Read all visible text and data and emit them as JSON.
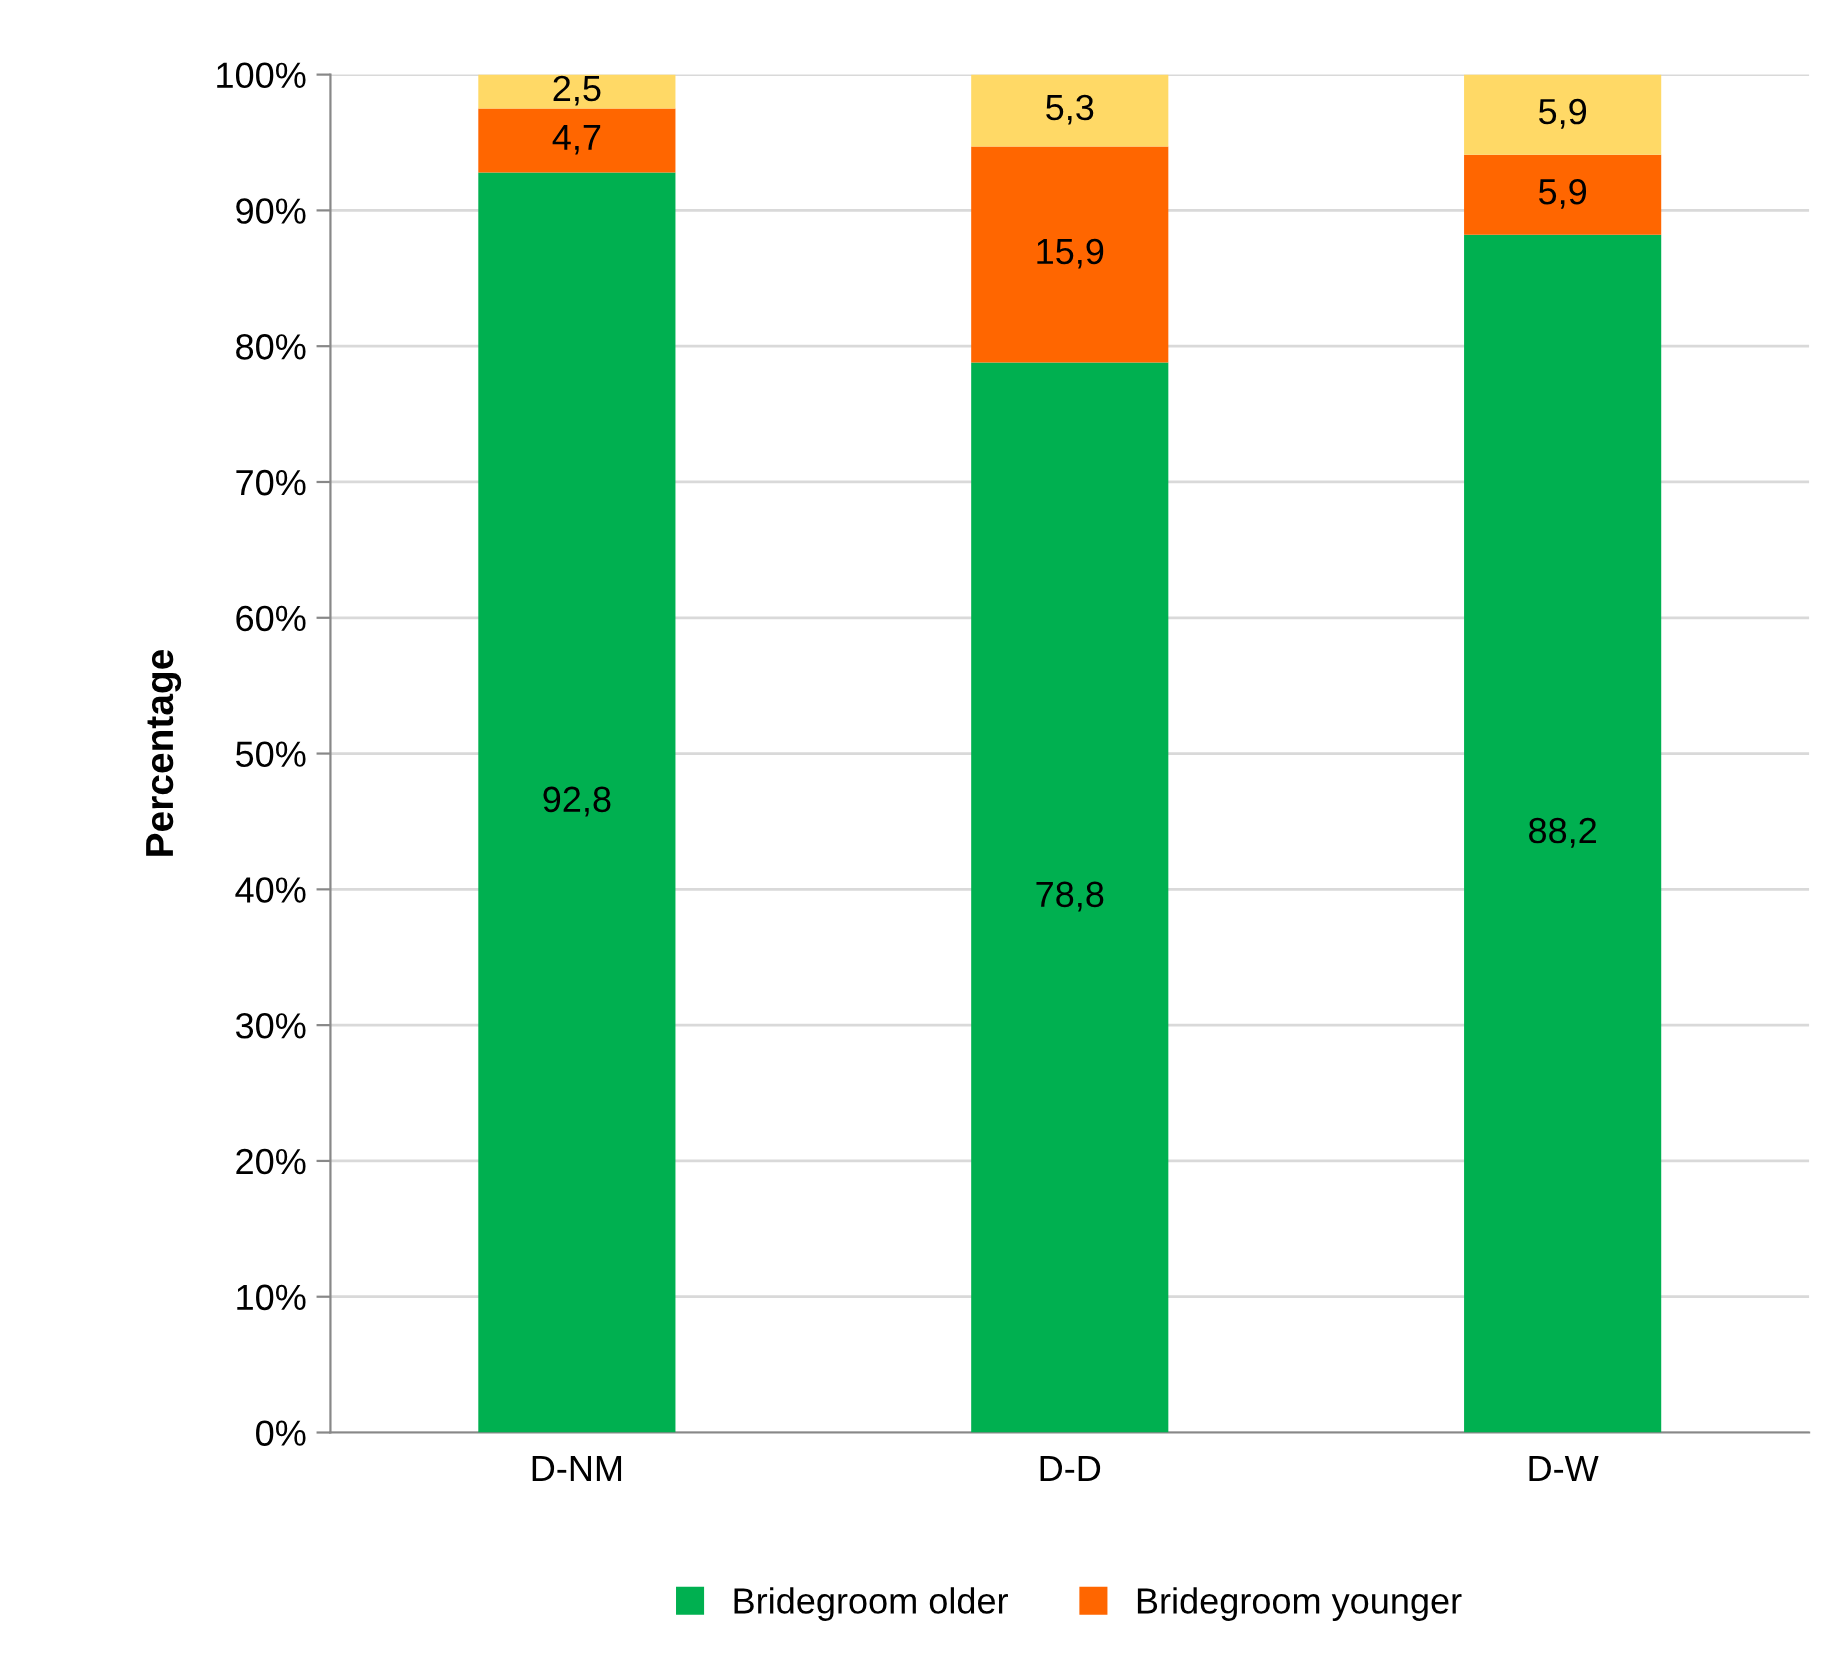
{
  "chart_data": {
    "type": "bar",
    "stacked": true,
    "ylabel": "Percentage",
    "categories": [
      "D-NM",
      "D-D",
      "D-W"
    ],
    "series": [
      {
        "name": "Bridegroom older",
        "color": "#00b050",
        "values": [
          92.8,
          78.8,
          88.2
        ],
        "value_labels": [
          "92,8",
          "78,8",
          "88,2"
        ]
      },
      {
        "name": "Bridegroom younger",
        "color": "#ff6600",
        "values": [
          4.7,
          15.9,
          5.9
        ],
        "value_labels": [
          "4,7",
          "15,9",
          "5,9"
        ]
      },
      {
        "color": "#ffd966",
        "values": [
          2.5,
          5.3,
          5.9
        ],
        "value_labels": [
          "2,5",
          "5,3",
          "5,9"
        ]
      }
    ],
    "ylim": [
      0,
      100
    ],
    "yticks": [
      {
        "value": 0,
        "label": "0%"
      },
      {
        "value": 10,
        "label": "10%"
      },
      {
        "value": 20,
        "label": "20%"
      },
      {
        "value": 30,
        "label": "30%"
      },
      {
        "value": 40,
        "label": "40%"
      },
      {
        "value": 50,
        "label": "50%"
      },
      {
        "value": 60,
        "label": "60%"
      },
      {
        "value": 70,
        "label": "70%"
      },
      {
        "value": 80,
        "label": "80%"
      },
      {
        "value": 90,
        "label": "90%"
      },
      {
        "value": 100,
        "label": "100%"
      }
    ],
    "grid": "y",
    "legend": "bottom"
  }
}
